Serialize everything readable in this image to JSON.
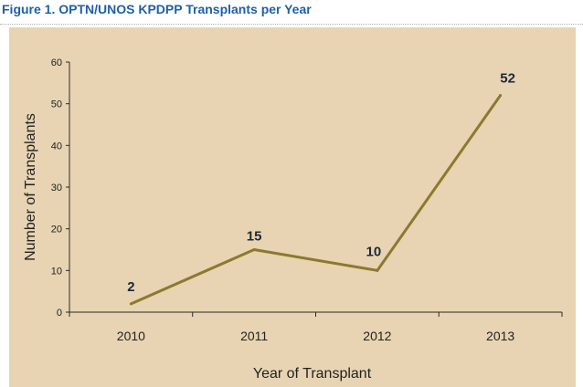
{
  "figure": {
    "title": "Figure 1. OPTN/UNOS KPDPP Transplants per Year"
  },
  "chart_data": {
    "type": "line",
    "title": "Figure 1. OPTN/UNOS KPDPP Transplants per Year",
    "xlabel": "Year of Transplant",
    "ylabel": "Number of Transplants",
    "categories": [
      "2010",
      "2011",
      "2012",
      "2013"
    ],
    "series": [
      {
        "values": [
          2,
          15,
          10,
          52
        ]
      }
    ],
    "data_labels": [
      "2",
      "15",
      "10",
      "52"
    ],
    "ylim": [
      0,
      60
    ],
    "yticks": [
      "0",
      "10",
      "20",
      "30",
      "40",
      "50",
      "60"
    ],
    "grid": false,
    "legend": "none",
    "colors": {
      "line": "#8a7a2e",
      "panel": "#e8d4b2",
      "title": "#1f5fa8"
    }
  }
}
